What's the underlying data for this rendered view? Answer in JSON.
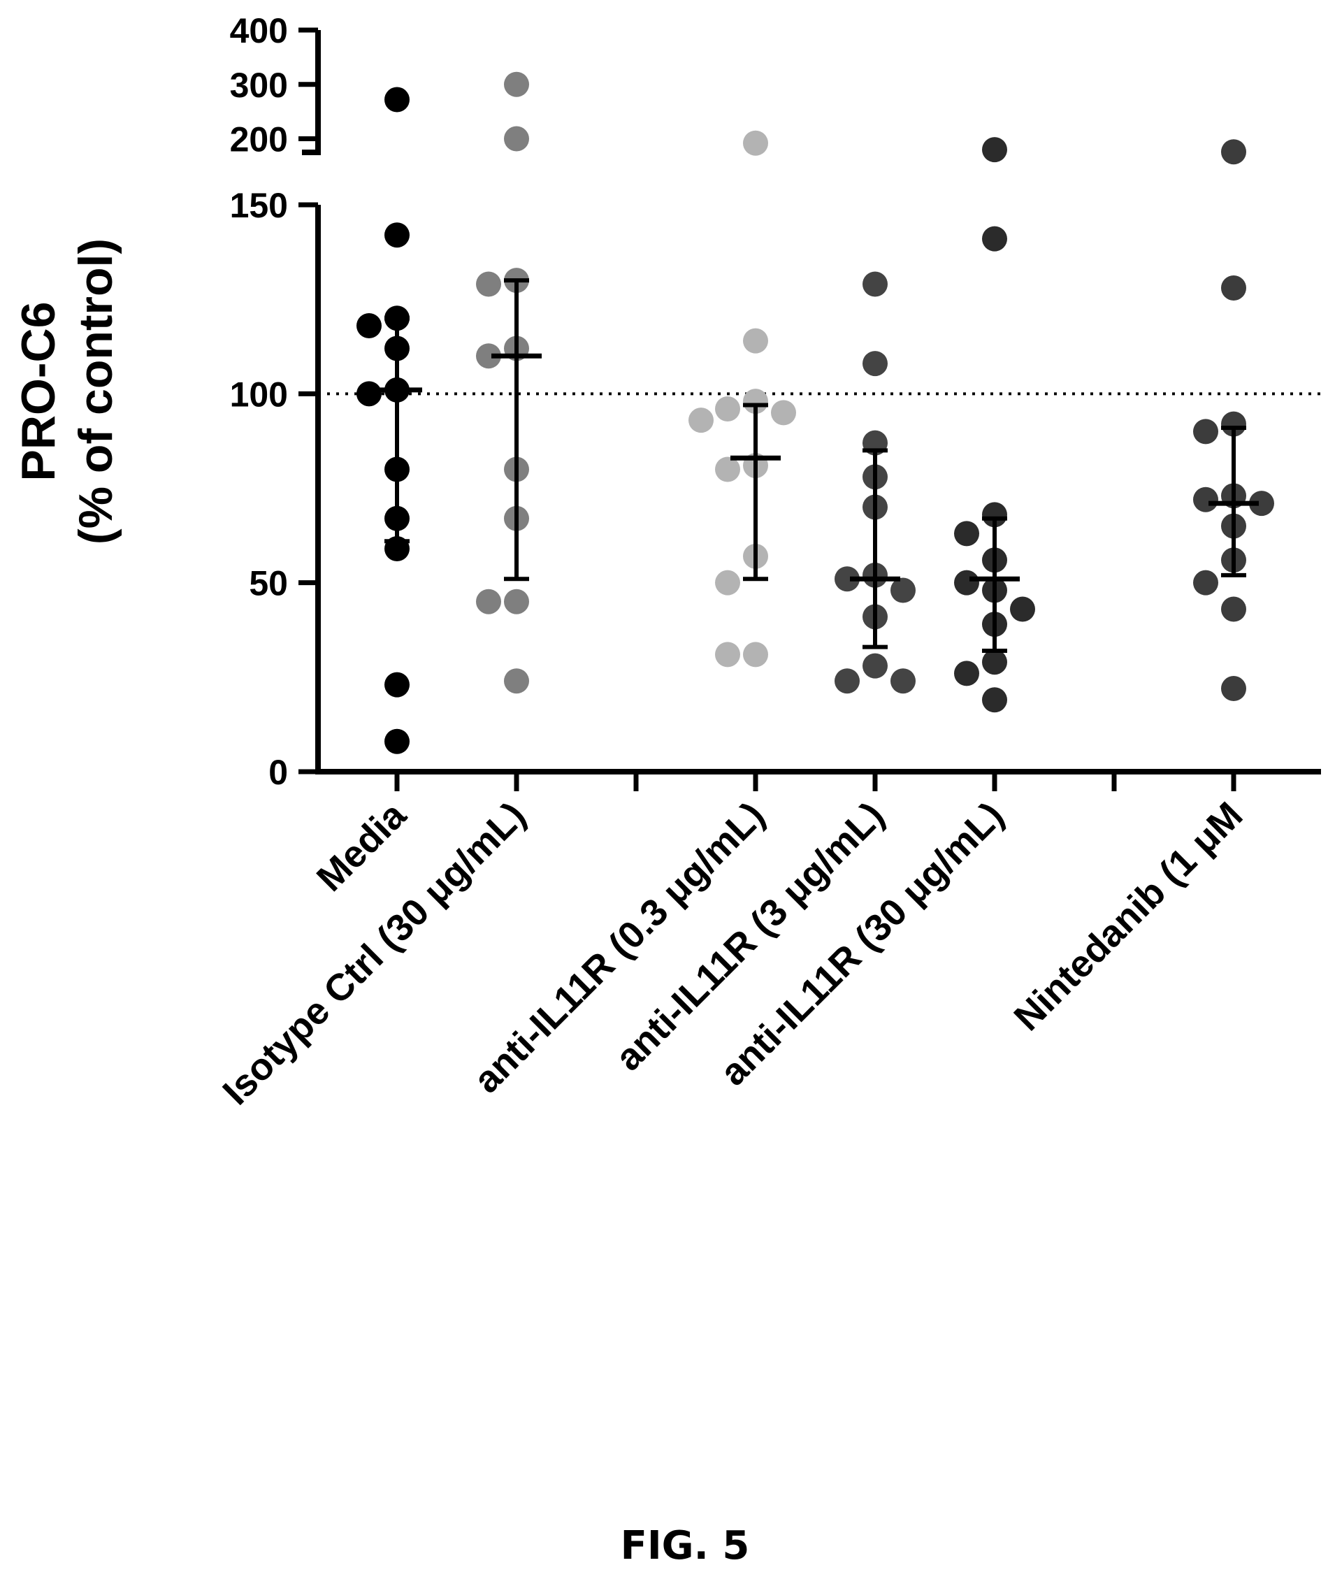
{
  "chart_data": {
    "type": "scatter",
    "ylabel": "PRO-C6",
    "ylabel_line2": "(% of control)",
    "y_axis_segments": [
      {
        "ylim": [
          0,
          150
        ],
        "ticks": [
          "0",
          "50",
          "100",
          "150"
        ]
      },
      {
        "ylim": [
          175,
          400
        ],
        "ticks": [
          "200",
          "300",
          "400"
        ],
        "broken": true
      }
    ],
    "reference_line": {
      "y": 100,
      "style": "dotted"
    },
    "categories": [
      "Media",
      "Isotype Ctrl  (30 μg/mL)",
      "",
      "anti-IL11R (0.3 μg/mL)",
      "anti-IL11R (3 μg/mL)",
      "anti-IL11R (30 μg/mL)",
      "",
      "Nintedanib (1 μM"
    ],
    "series": [
      {
        "category_index": 0,
        "color": "#000000",
        "points": [
          272,
          142,
          120,
          118,
          112,
          101,
          100,
          80,
          67,
          59,
          23,
          8
        ],
        "median": 101,
        "q1": 61,
        "q3": 120
      },
      {
        "category_index": 1,
        "color": "#7f7f7f",
        "points": [
          300,
          200,
          130,
          129,
          112,
          110,
          80,
          67,
          45,
          45,
          24
        ],
        "median": 110,
        "q1": 51,
        "q3": 130
      },
      {
        "category_index": 3,
        "color": "#b3b3b3",
        "points": [
          192,
          114,
          98,
          96,
          95,
          93,
          81,
          80,
          57,
          50,
          31,
          31
        ],
        "median": 83,
        "q1": 51,
        "q3": 97
      },
      {
        "category_index": 4,
        "color": "#444444",
        "points": [
          129,
          108,
          87,
          78,
          70,
          52,
          51,
          48,
          41,
          28,
          24,
          24
        ],
        "median": 51,
        "q1": 33,
        "q3": 85
      },
      {
        "category_index": 5,
        "color": "#2b2b2b",
        "points": [
          180,
          141,
          68,
          63,
          56,
          50,
          48,
          43,
          39,
          29,
          26,
          19
        ],
        "median": 51,
        "q1": 32,
        "q3": 67
      },
      {
        "category_index": 7,
        "color": "#3c3c3c",
        "points": [
          176,
          128,
          92,
          90,
          73,
          72,
          71,
          65,
          56,
          50,
          43,
          22
        ],
        "median": 71,
        "q1": 52,
        "q3": 91
      }
    ]
  },
  "figure_caption": "FIG. 5"
}
